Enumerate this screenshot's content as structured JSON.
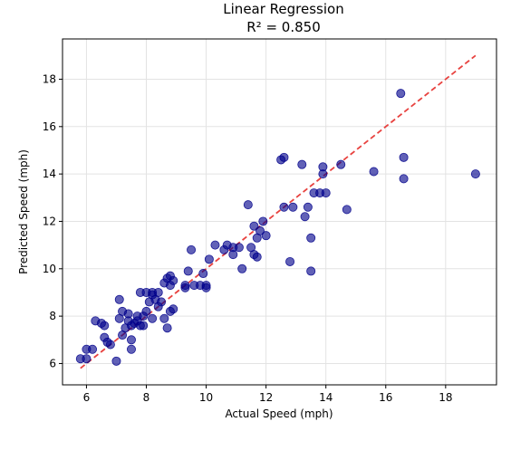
{
  "chart_data": {
    "type": "scatter",
    "title": "Linear Regression",
    "subtitle": "R² = 0.850",
    "xlabel": "Actual Speed (mph)",
    "ylabel": "Predicted Speed (mph)",
    "xlim": [
      5.2,
      19.7
    ],
    "ylim": [
      5.1,
      19.7
    ],
    "xticks": [
      6,
      8,
      10,
      12,
      14,
      16,
      18
    ],
    "yticks": [
      6,
      8,
      10,
      12,
      14,
      16,
      18
    ],
    "grid": true,
    "colors": {
      "points": "#00008b",
      "fit_line": "#e8423f"
    },
    "fit_line": {
      "x": [
        5.8,
        19.0
      ],
      "y": [
        5.8,
        19.0
      ],
      "style": "dashed"
    },
    "series": [
      {
        "x": [
          5.8,
          6.0,
          6.0,
          6.2,
          6.3,
          6.5,
          6.6,
          6.6,
          6.7,
          6.8,
          7.0,
          7.1,
          7.1,
          7.2,
          7.2,
          7.3,
          7.4,
          7.4,
          7.5,
          7.5,
          7.5,
          7.6,
          7.7,
          7.7,
          7.8,
          7.8,
          7.9,
          7.9,
          8.0,
          8.0,
          8.1,
          8.2,
          8.2,
          8.2,
          8.3,
          8.4,
          8.4,
          8.5,
          8.6,
          8.6,
          8.7,
          8.7,
          8.8,
          8.8,
          8.8,
          8.9,
          8.9,
          9.3,
          9.3,
          9.4,
          9.5,
          9.6,
          9.8,
          9.9,
          10.0,
          10.0,
          10.1,
          10.3,
          10.6,
          10.7,
          10.9,
          10.9,
          11.1,
          11.2,
          11.4,
          11.5,
          11.6,
          11.6,
          11.7,
          11.7,
          11.8,
          11.9,
          12.0,
          12.5,
          12.6,
          12.6,
          12.8,
          12.9,
          13.2,
          13.3,
          13.4,
          13.5,
          13.5,
          13.6,
          13.8,
          13.9,
          13.9,
          14.0,
          14.5,
          14.7,
          15.6,
          16.5,
          16.6,
          16.6,
          19.0
        ],
        "y": [
          6.2,
          6.2,
          6.6,
          6.6,
          7.8,
          7.7,
          7.6,
          7.1,
          6.9,
          6.8,
          6.1,
          7.9,
          8.7,
          8.2,
          7.2,
          7.5,
          7.8,
          8.1,
          7.6,
          6.6,
          7.0,
          7.7,
          7.8,
          8.0,
          7.6,
          9.0,
          7.6,
          8.0,
          9.0,
          8.2,
          8.6,
          8.9,
          9.0,
          7.9,
          8.7,
          9.0,
          8.4,
          8.6,
          9.4,
          7.9,
          9.6,
          7.5,
          9.3,
          9.7,
          8.2,
          9.5,
          8.3,
          9.2,
          9.3,
          9.9,
          10.8,
          9.3,
          9.3,
          9.8,
          9.2,
          9.3,
          10.4,
          11.0,
          10.8,
          11.0,
          10.9,
          10.6,
          10.9,
          10.0,
          12.7,
          10.9,
          10.6,
          11.8,
          10.5,
          11.3,
          11.6,
          12.0,
          11.4,
          14.6,
          14.7,
          12.6,
          10.3,
          12.6,
          14.4,
          12.2,
          12.6,
          11.3,
          9.9,
          13.2,
          13.2,
          14.3,
          14.0,
          13.2,
          14.4,
          12.5,
          14.1,
          17.4,
          14.7,
          13.8,
          14.0
        ]
      }
    ]
  }
}
